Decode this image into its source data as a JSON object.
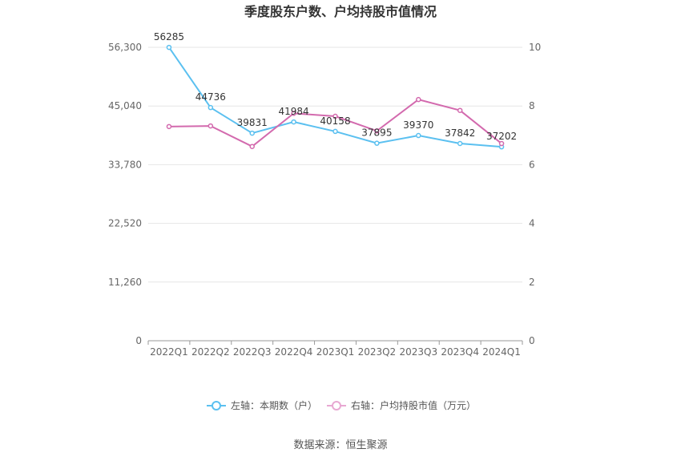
{
  "chart_data": {
    "type": "line",
    "title": "季度股东户数、户均持股市值情况",
    "categories": [
      "2022Q1",
      "2022Q2",
      "2022Q3",
      "2022Q4",
      "2023Q1",
      "2023Q2",
      "2023Q3",
      "2023Q4",
      "2024Q1"
    ],
    "y_left": {
      "ticks": [
        "0",
        "11,260",
        "22,520",
        "33,780",
        "45,040",
        "56,300"
      ],
      "range": [
        0,
        56300
      ]
    },
    "y_right": {
      "ticks": [
        "0",
        "2",
        "4",
        "6",
        "8",
        "10"
      ],
      "range": [
        0,
        10
      ]
    },
    "series": [
      {
        "name": "左轴：本期数（户）",
        "axis": "left",
        "color": "#5bc0f0",
        "values": [
          56285,
          44736,
          39831,
          41984,
          40158,
          37895,
          39370,
          37842,
          37202
        ],
        "labels": [
          "56285",
          "44736",
          "39831",
          "41984",
          "40158",
          "37895",
          "39370",
          "37842",
          "37202"
        ]
      },
      {
        "name": "右轴：户均持股市值（万元）",
        "axis": "right",
        "color": "#d36aae",
        "values": [
          7.3,
          7.32,
          6.62,
          7.75,
          7.65,
          7.15,
          8.22,
          7.85,
          6.72
        ]
      }
    ],
    "legend_position": "bottom",
    "grid": true
  },
  "footer": {
    "source": "数据来源：恒生聚源"
  }
}
